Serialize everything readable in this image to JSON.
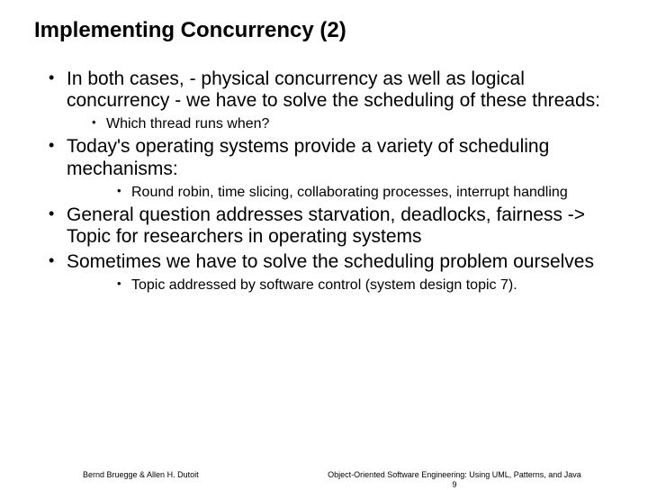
{
  "title": "Implementing Concurrency (2)",
  "bullets": {
    "b1": "In both cases, - physical concurrency as well as logical concurrency - we have to solve the scheduling of these threads:",
    "b1s1": "Which thread runs when?",
    "b2": "Today's operating systems provide a variety of scheduling mechanisms:",
    "b2s1": "Round robin, time slicing, collaborating processes, interrupt handling",
    "b3": "General question addresses starvation, deadlocks, fairness -> Topic for researchers in operating systems",
    "b4": "Sometimes we have to solve the scheduling problem ourselves",
    "b4s1": "Topic addressed by software control (system design topic 7)."
  },
  "footer": {
    "left": "Bernd Bruegge & Allen H. Dutoit",
    "right": "Object-Oriented Software Engineering: Using UML, Patterns, and Java",
    "page": "9"
  },
  "colors": {
    "text": "#000000",
    "background": "#ffffff"
  },
  "typography": {
    "title_fontsize": 24,
    "body_fontsize": 21,
    "sub_fontsize": 16,
    "footer_fontsize": 9
  }
}
